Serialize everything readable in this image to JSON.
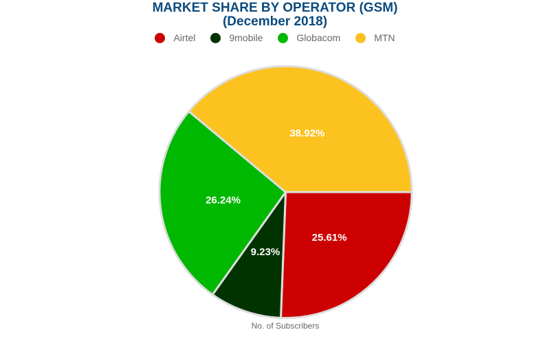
{
  "chart_data": {
    "type": "pie",
    "title": "MARKET SHARE BY OPERATOR (GSM)",
    "subtitle": "(December 2018)",
    "xlabel": "No. of Subscribers",
    "legend_position": "top",
    "slices": [
      {
        "label": "Airtel",
        "value": 25.61,
        "display": "25.61%",
        "color": "#cc0000"
      },
      {
        "label": "9mobile",
        "value": 9.23,
        "display": "9.23%",
        "color": "#003300"
      },
      {
        "label": "Globacom",
        "value": 26.24,
        "display": "26.24%",
        "color": "#00b800"
      },
      {
        "label": "MTN",
        "value": 38.92,
        "display": "38.92%",
        "color": "#fcc21f"
      }
    ]
  }
}
